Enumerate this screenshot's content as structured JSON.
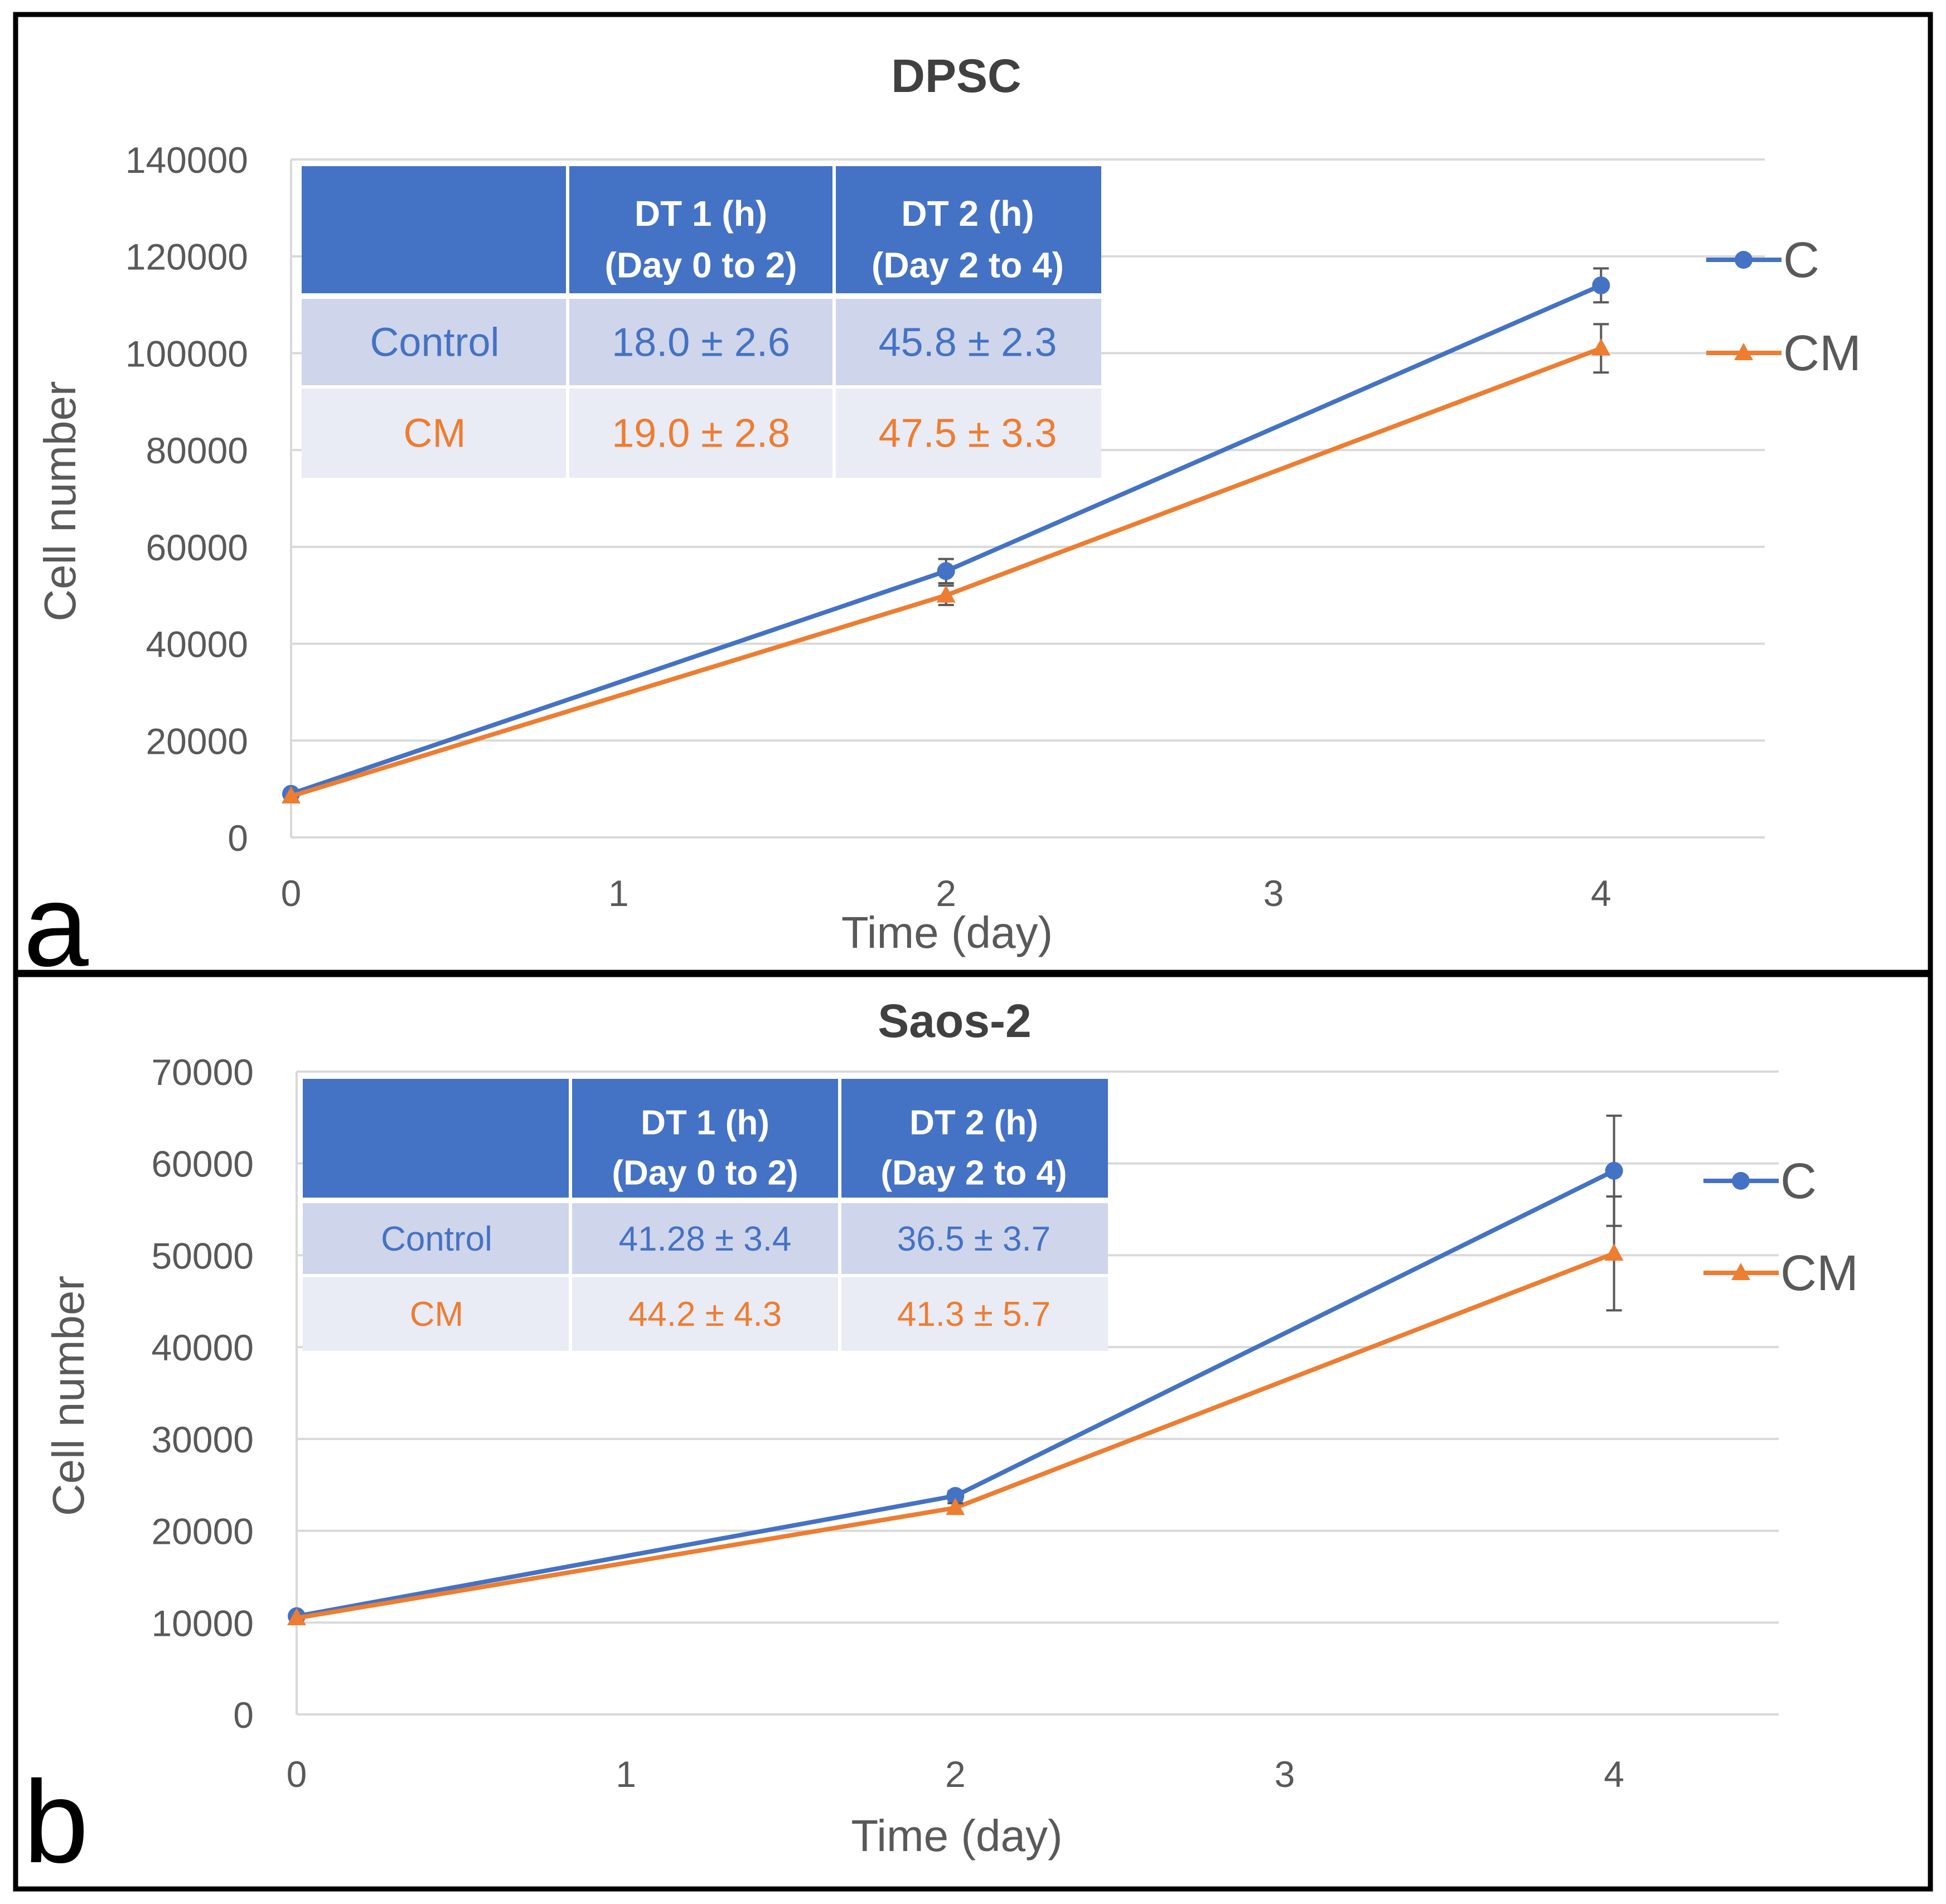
{
  "colors": {
    "control": "#4472C4",
    "cm": "#ED7D31",
    "header_bg": "#4472C4",
    "header_text": "#FFFFFF",
    "row1_bg": "#CFD5EA",
    "row2_bg": "#E9EBF5",
    "grid": "#D9D9D9",
    "text": "#595959"
  },
  "chart_data": [
    {
      "type": "line",
      "panel_label": "a",
      "title": "DPSC",
      "xlabel": "Time (day)",
      "ylabel": "Cell number",
      "x_ticks": [
        "0",
        "1",
        "2",
        "3",
        "4"
      ],
      "y_ticks": [
        "0",
        "20000",
        "40000",
        "60000",
        "80000",
        "100000",
        "120000",
        "140000"
      ],
      "xlim": [
        0,
        4.5
      ],
      "ylim": [
        0,
        140000
      ],
      "grid": true,
      "legend_position": "right",
      "series": [
        {
          "name": "C",
          "color_key": "control",
          "marker": "circle",
          "x": [
            0,
            2,
            4
          ],
          "y": [
            9000,
            55000,
            114000
          ],
          "err": [
            500,
            2500,
            3500
          ]
        },
        {
          "name": "CM",
          "color_key": "cm",
          "marker": "triangle",
          "x": [
            0,
            2,
            4
          ],
          "y": [
            8500,
            50000,
            101000
          ],
          "err": [
            500,
            2000,
            5000
          ]
        }
      ],
      "table": {
        "headers": [
          "",
          "DT 1 (h)\n(Day 0 to 2)",
          "DT 2 (h)\n(Day 2 to 4)"
        ],
        "rows": [
          {
            "label": "Control",
            "color_key": "control",
            "values": [
              "18.0 ± 2.6",
              "45.8 ± 2.3"
            ]
          },
          {
            "label": "CM",
            "color_key": "cm",
            "values": [
              "19.0 ± 2.8",
              "47.5 ± 3.3"
            ]
          }
        ]
      }
    },
    {
      "type": "line",
      "panel_label": "b",
      "title": "Saos-2",
      "xlabel": "Time (day)",
      "ylabel": "Cell number",
      "x_ticks": [
        "0",
        "1",
        "2",
        "3",
        "4"
      ],
      "y_ticks": [
        "0",
        "10000",
        "20000",
        "30000",
        "40000",
        "50000",
        "60000",
        "70000"
      ],
      "xlim": [
        0,
        4.5
      ],
      "ylim": [
        0,
        70000
      ],
      "grid": true,
      "legend_position": "right",
      "series": [
        {
          "name": "C",
          "color_key": "control",
          "marker": "circle",
          "x": [
            0,
            2,
            4
          ],
          "y": [
            10700,
            23800,
            59200
          ],
          "err": [
            300,
            500,
            6000
          ]
        },
        {
          "name": "CM",
          "color_key": "cm",
          "marker": "triangle",
          "x": [
            0,
            2,
            4
          ],
          "y": [
            10500,
            22500,
            50200
          ],
          "err": [
            300,
            500,
            6200
          ]
        }
      ],
      "table": {
        "headers": [
          "",
          "DT 1 (h)\n(Day 0 to 2)",
          "DT 2 (h)\n(Day 2 to 4)"
        ],
        "rows": [
          {
            "label": "Control",
            "color_key": "control",
            "values": [
              "41.28 ± 3.4",
              "36.5 ± 3.7"
            ]
          },
          {
            "label": "CM",
            "color_key": "cm",
            "values": [
              "44.2 ± 4.3",
              "41.3 ± 5.7"
            ]
          }
        ]
      }
    }
  ]
}
